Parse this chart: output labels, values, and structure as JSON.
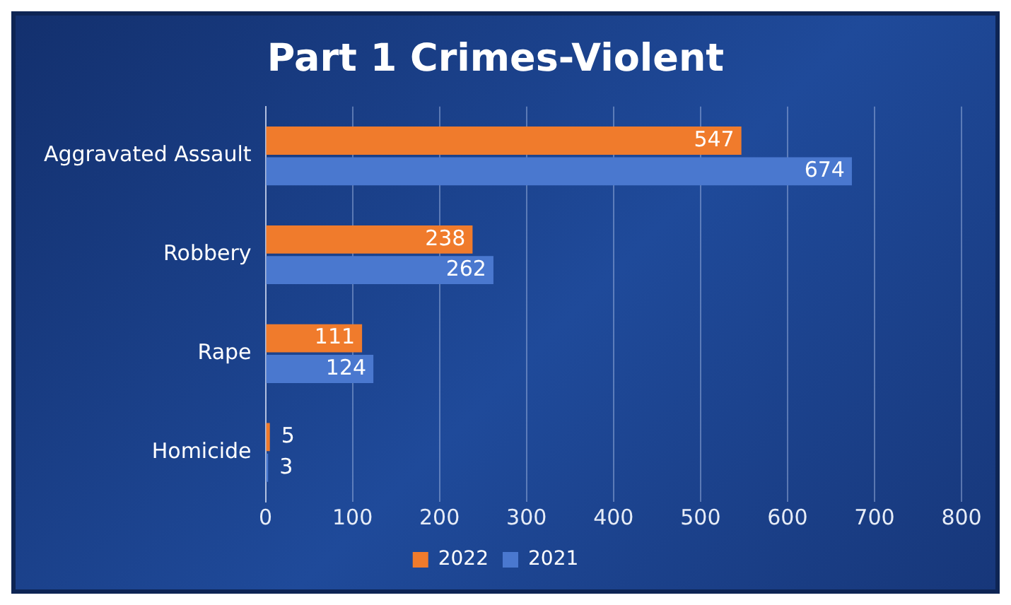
{
  "chart_data": {
    "type": "bar",
    "orientation": "horizontal",
    "title": "Part 1 Crimes-Violent",
    "categories": [
      "Aggravated Assault",
      "Robbery",
      "Rape",
      "Homicide"
    ],
    "series": [
      {
        "name": "2022",
        "color": "#f07b2c",
        "values": [
          547,
          238,
          111,
          5
        ]
      },
      {
        "name": "2021",
        "color": "#4a78cf",
        "values": [
          674,
          262,
          124,
          3
        ]
      }
    ],
    "xlim": [
      0,
      800
    ],
    "xticks": [
      0,
      100,
      200,
      300,
      400,
      500,
      600,
      700,
      800
    ],
    "grid": "x",
    "legend": "bottom",
    "data_labels": true
  }
}
